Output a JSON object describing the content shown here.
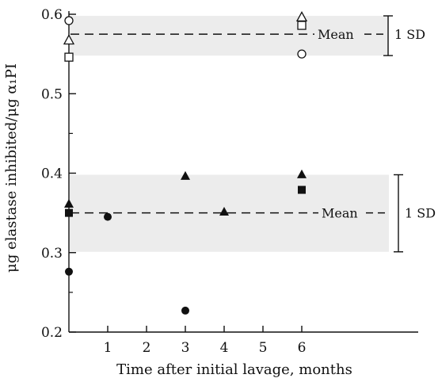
{
  "chart_data": {
    "type": "scatter",
    "title": "",
    "xlabel": "Time after initial lavage, months",
    "ylabel": "μg elastase inhibited/μg α₁PI",
    "xlim": [
      0,
      8
    ],
    "ylim": [
      0.2,
      0.6
    ],
    "x_ticks": [
      1,
      2,
      3,
      4,
      5,
      6
    ],
    "y_ticks": [
      0.2,
      0.3,
      0.4,
      0.5,
      0.6
    ],
    "x_tick_labels": [
      "1",
      "2",
      "3",
      "4",
      "5",
      "6"
    ],
    "y_tick_labels": [
      "0.2",
      "0.3",
      "0.4",
      "0.5",
      "0.6"
    ],
    "grid": false,
    "legend": "none",
    "groups": [
      {
        "mean": 0.575,
        "sd_band": [
          0.548,
          0.598
        ],
        "mean_label": "Mean",
        "sd_label": "1 SD",
        "points": [
          {
            "marker": "open-circle",
            "x": 0,
            "y": 0.592
          },
          {
            "marker": "open-triangle",
            "x": 0,
            "y": 0.567
          },
          {
            "marker": "open-square",
            "x": 0,
            "y": 0.546
          },
          {
            "marker": "open-triangle",
            "x": 6,
            "y": 0.596
          },
          {
            "marker": "open-square",
            "x": 6,
            "y": 0.586
          },
          {
            "marker": "open-circle",
            "x": 6,
            "y": 0.55
          }
        ]
      },
      {
        "mean": 0.35,
        "sd_band": [
          0.301,
          0.398
        ],
        "mean_label": "Mean",
        "sd_label": "1 SD",
        "points": [
          {
            "marker": "filled-triangle",
            "x": 0,
            "y": 0.361
          },
          {
            "marker": "filled-square",
            "x": 0,
            "y": 0.35
          },
          {
            "marker": "filled-circle",
            "x": 0,
            "y": 0.276
          },
          {
            "marker": "filled-circle",
            "x": 1,
            "y": 0.345
          },
          {
            "marker": "filled-triangle",
            "x": 3,
            "y": 0.396
          },
          {
            "marker": "filled-circle",
            "x": 3,
            "y": 0.227
          },
          {
            "marker": "filled-triangle",
            "x": 4,
            "y": 0.351
          },
          {
            "marker": "filled-triangle",
            "x": 6,
            "y": 0.398
          },
          {
            "marker": "filled-square",
            "x": 6,
            "y": 0.379
          }
        ]
      }
    ]
  }
}
